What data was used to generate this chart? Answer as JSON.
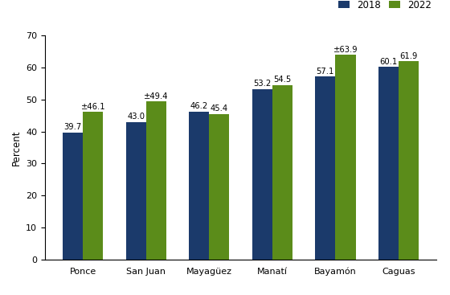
{
  "categories": [
    "Ponce",
    "San Juan",
    "Mayagüez",
    "Manatí",
    "Bayamón",
    "Caguas"
  ],
  "values_2018": [
    39.7,
    43.0,
    46.2,
    53.2,
    57.1,
    60.1
  ],
  "values_2022": [
    46.1,
    49.4,
    45.4,
    54.5,
    63.9,
    61.9
  ],
  "labels_2018": [
    "39.7",
    "43.0",
    "46.2",
    "53.2",
    "57.1",
    "60.1"
  ],
  "labels_2022": [
    "±46.1",
    "±49.4",
    "45.4",
    "54.5",
    "±63.9",
    "61.9"
  ],
  "color_2018": "#1b3a6b",
  "color_2022": "#5b8c1a",
  "ylabel": "Percent",
  "ylim": [
    0,
    70
  ],
  "yticks": [
    0,
    10,
    20,
    30,
    40,
    50,
    60,
    70
  ],
  "legend_labels": [
    "2018",
    "2022"
  ],
  "bar_width": 0.32,
  "label_fontsize": 7.2,
  "axis_fontsize": 8.5,
  "tick_fontsize": 8.0
}
